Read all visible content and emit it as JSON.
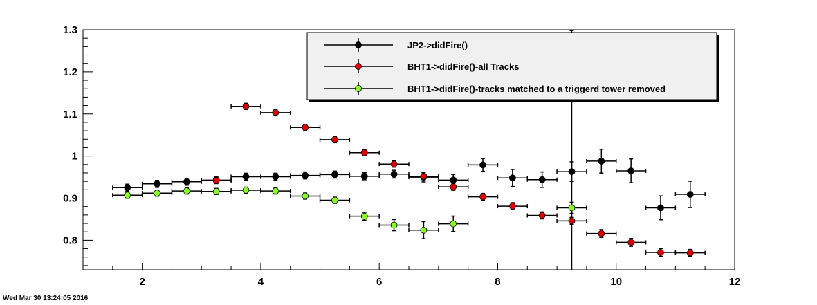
{
  "timestamp": "Wed Mar 30 13:24:05 2016",
  "chart_data": {
    "type": "scatter",
    "title": "",
    "xlabel": "",
    "ylabel": "",
    "xlim": [
      1,
      12
    ],
    "ylim": [
      0.73,
      1.3
    ],
    "x_ticks": [
      2,
      4,
      6,
      8,
      10,
      12
    ],
    "y_ticks": [
      0.8,
      0.9,
      1,
      1.1,
      1.2,
      1.3
    ],
    "y_tick_labels": [
      "0.8",
      "0.9",
      "1",
      "1.1",
      "1.2",
      "1.3"
    ],
    "grid": false,
    "legend": "top-right",
    "series": [
      {
        "name": "JP2->didFire()",
        "color": "#000000",
        "x": [
          1.75,
          2.25,
          2.75,
          3.25,
          3.75,
          4.25,
          4.75,
          5.25,
          5.75,
          6.25,
          6.75,
          7.25,
          7.75,
          8.25,
          8.75,
          9.25,
          9.75,
          10.25,
          10.75,
          11.25
        ],
        "y": [
          0.925,
          0.934,
          0.939,
          0.943,
          0.951,
          0.951,
          0.954,
          0.956,
          0.952,
          0.957,
          0.95,
          0.943,
          0.979,
          0.948,
          0.944,
          0.963,
          0.988,
          0.965,
          0.877,
          0.909
        ],
        "yerr": [
          0.005,
          0.005,
          0.005,
          0.005,
          0.005,
          0.005,
          0.005,
          0.005,
          0.005,
          0.006,
          0.008,
          0.01,
          0.012,
          0.017,
          0.015,
          0.02,
          0.025,
          0.025,
          0.025,
          0.028
        ],
        "xerr": 0.25
      },
      {
        "name": "BHT1->didFire()-all Tracks",
        "color": "#dd0000",
        "x": [
          3.25,
          3.75,
          4.25,
          4.75,
          5.25,
          5.75,
          6.25,
          6.75,
          7.25,
          7.75,
          8.25,
          8.75,
          9.25,
          9.75,
          10.25,
          10.75,
          11.25
        ],
        "y": [
          0.942,
          1.118,
          1.103,
          1.068,
          1.039,
          1.008,
          0.981,
          0.952,
          0.927,
          0.903,
          0.881,
          0.859,
          0.846,
          0.816,
          0.795,
          0.771,
          0.77
        ],
        "yerr": [
          0.004,
          0.004,
          0.004,
          0.004,
          0.004,
          0.004,
          0.004,
          0.005,
          0.005,
          0.005,
          0.005,
          0.005,
          0.005,
          0.006,
          0.006,
          0.006,
          0.005
        ],
        "xerr": 0.25
      },
      {
        "name": "BHT1->didFire()-tracks matched to a triggerd tower removed",
        "color": "#88ff22",
        "x": [
          1.75,
          2.25,
          2.75,
          3.25,
          3.75,
          4.25,
          4.75,
          5.25,
          5.75,
          6.25,
          6.75,
          7.25,
          9.25
        ],
        "y": [
          0.907,
          0.912,
          0.917,
          0.916,
          0.919,
          0.917,
          0.905,
          0.895,
          0.857,
          0.836,
          0.824,
          0.839,
          0.877
        ],
        "yerr": [
          0.004,
          0.004,
          0.004,
          0.004,
          0.004,
          0.004,
          0.004,
          0.004,
          0.006,
          0.01,
          0.017,
          0.015,
          0.01
        ],
        "xerr": 0.25
      }
    ],
    "annotations": [
      {
        "type": "vertical-error-bar",
        "x": 9.25,
        "y_from": 0.73,
        "y_to": 1.3,
        "color": "#000000"
      }
    ]
  }
}
